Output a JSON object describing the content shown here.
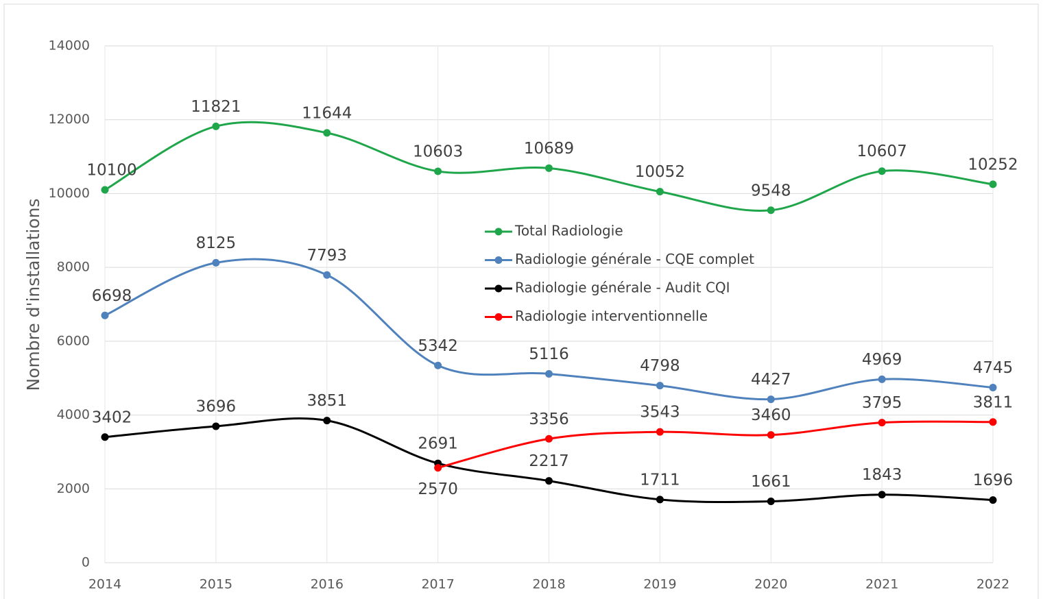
{
  "chart_data": {
    "type": "line",
    "y_label": "Nombre d'installations",
    "categories": [
      "2014",
      "2015",
      "2016",
      "2017",
      "2018",
      "2019",
      "2020",
      "2021",
      "2022"
    ],
    "series": [
      {
        "name": "Total Radiologie",
        "color": "#1fa64a",
        "values": [
          10100,
          11821,
          11644,
          10603,
          10689,
          10052,
          9548,
          10607,
          10252
        ]
      },
      {
        "name": "Radiologie générale - CQE complet",
        "color": "#4f81bd",
        "values": [
          6698,
          8125,
          7793,
          5342,
          5116,
          4798,
          4427,
          4969,
          4745
        ]
      },
      {
        "name": "Radiologie générale - Audit CQI",
        "color": "#000000",
        "values": [
          3402,
          3696,
          3851,
          2691,
          2217,
          1711,
          1661,
          1843,
          1696
        ]
      },
      {
        "name": "Radiologie interventionnelle",
        "color": "#ff0000",
        "values": [
          null,
          null,
          null,
          2570,
          3356,
          3543,
          3460,
          3795,
          3811
        ]
      }
    ],
    "ylim": [
      0,
      14000
    ],
    "yticks": [
      0,
      2000,
      4000,
      6000,
      8000,
      10000,
      12000,
      14000
    ],
    "grid": true,
    "smooth": true,
    "legend": "center"
  }
}
